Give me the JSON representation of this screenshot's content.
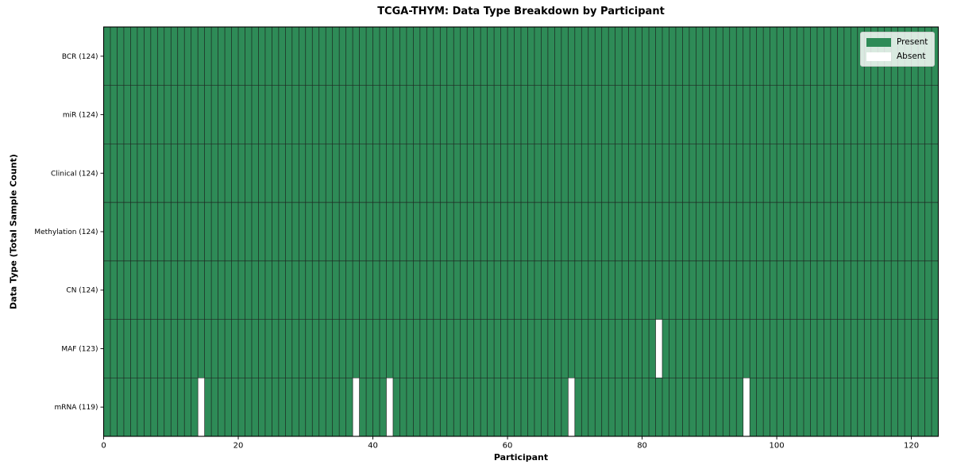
{
  "chart_data": {
    "type": "heatmap",
    "title": "TCGA-THYM: Data Type Breakdown by Participant",
    "xlabel": "Participant",
    "ylabel": "Data Type (Total Sample Count)",
    "n_participants": 124,
    "xlim": [
      0,
      124
    ],
    "x_ticks": [
      0,
      20,
      40,
      60,
      80,
      100,
      120
    ],
    "grid": true,
    "legend_position": "upper right",
    "rows": [
      {
        "label": "BCR (124)",
        "data_type": "BCR",
        "present_count": 124,
        "absent_participants": []
      },
      {
        "label": "miR (124)",
        "data_type": "miR",
        "present_count": 124,
        "absent_participants": []
      },
      {
        "label": "Clinical (124)",
        "data_type": "Clinical",
        "present_count": 124,
        "absent_participants": []
      },
      {
        "label": "Methylation (124)",
        "data_type": "Methylation",
        "present_count": 124,
        "absent_participants": []
      },
      {
        "label": "CN (124)",
        "data_type": "CN",
        "present_count": 124,
        "absent_participants": []
      },
      {
        "label": "MAF (123)",
        "data_type": "MAF",
        "present_count": 123,
        "absent_participants": [
          82
        ]
      },
      {
        "label": "mRNA (119)",
        "data_type": "mRNA",
        "present_count": 119,
        "absent_participants": [
          14,
          37,
          42,
          69,
          95
        ]
      }
    ],
    "legend": [
      {
        "label": "Present",
        "color": "#2e8b57"
      },
      {
        "label": "Absent",
        "color": "#ffffff"
      }
    ],
    "colors": {
      "present": "#2e8b57",
      "absent": "#ffffff",
      "cell_edge": "#1a1a1a",
      "spine": "#000000",
      "text": "#000000"
    }
  }
}
